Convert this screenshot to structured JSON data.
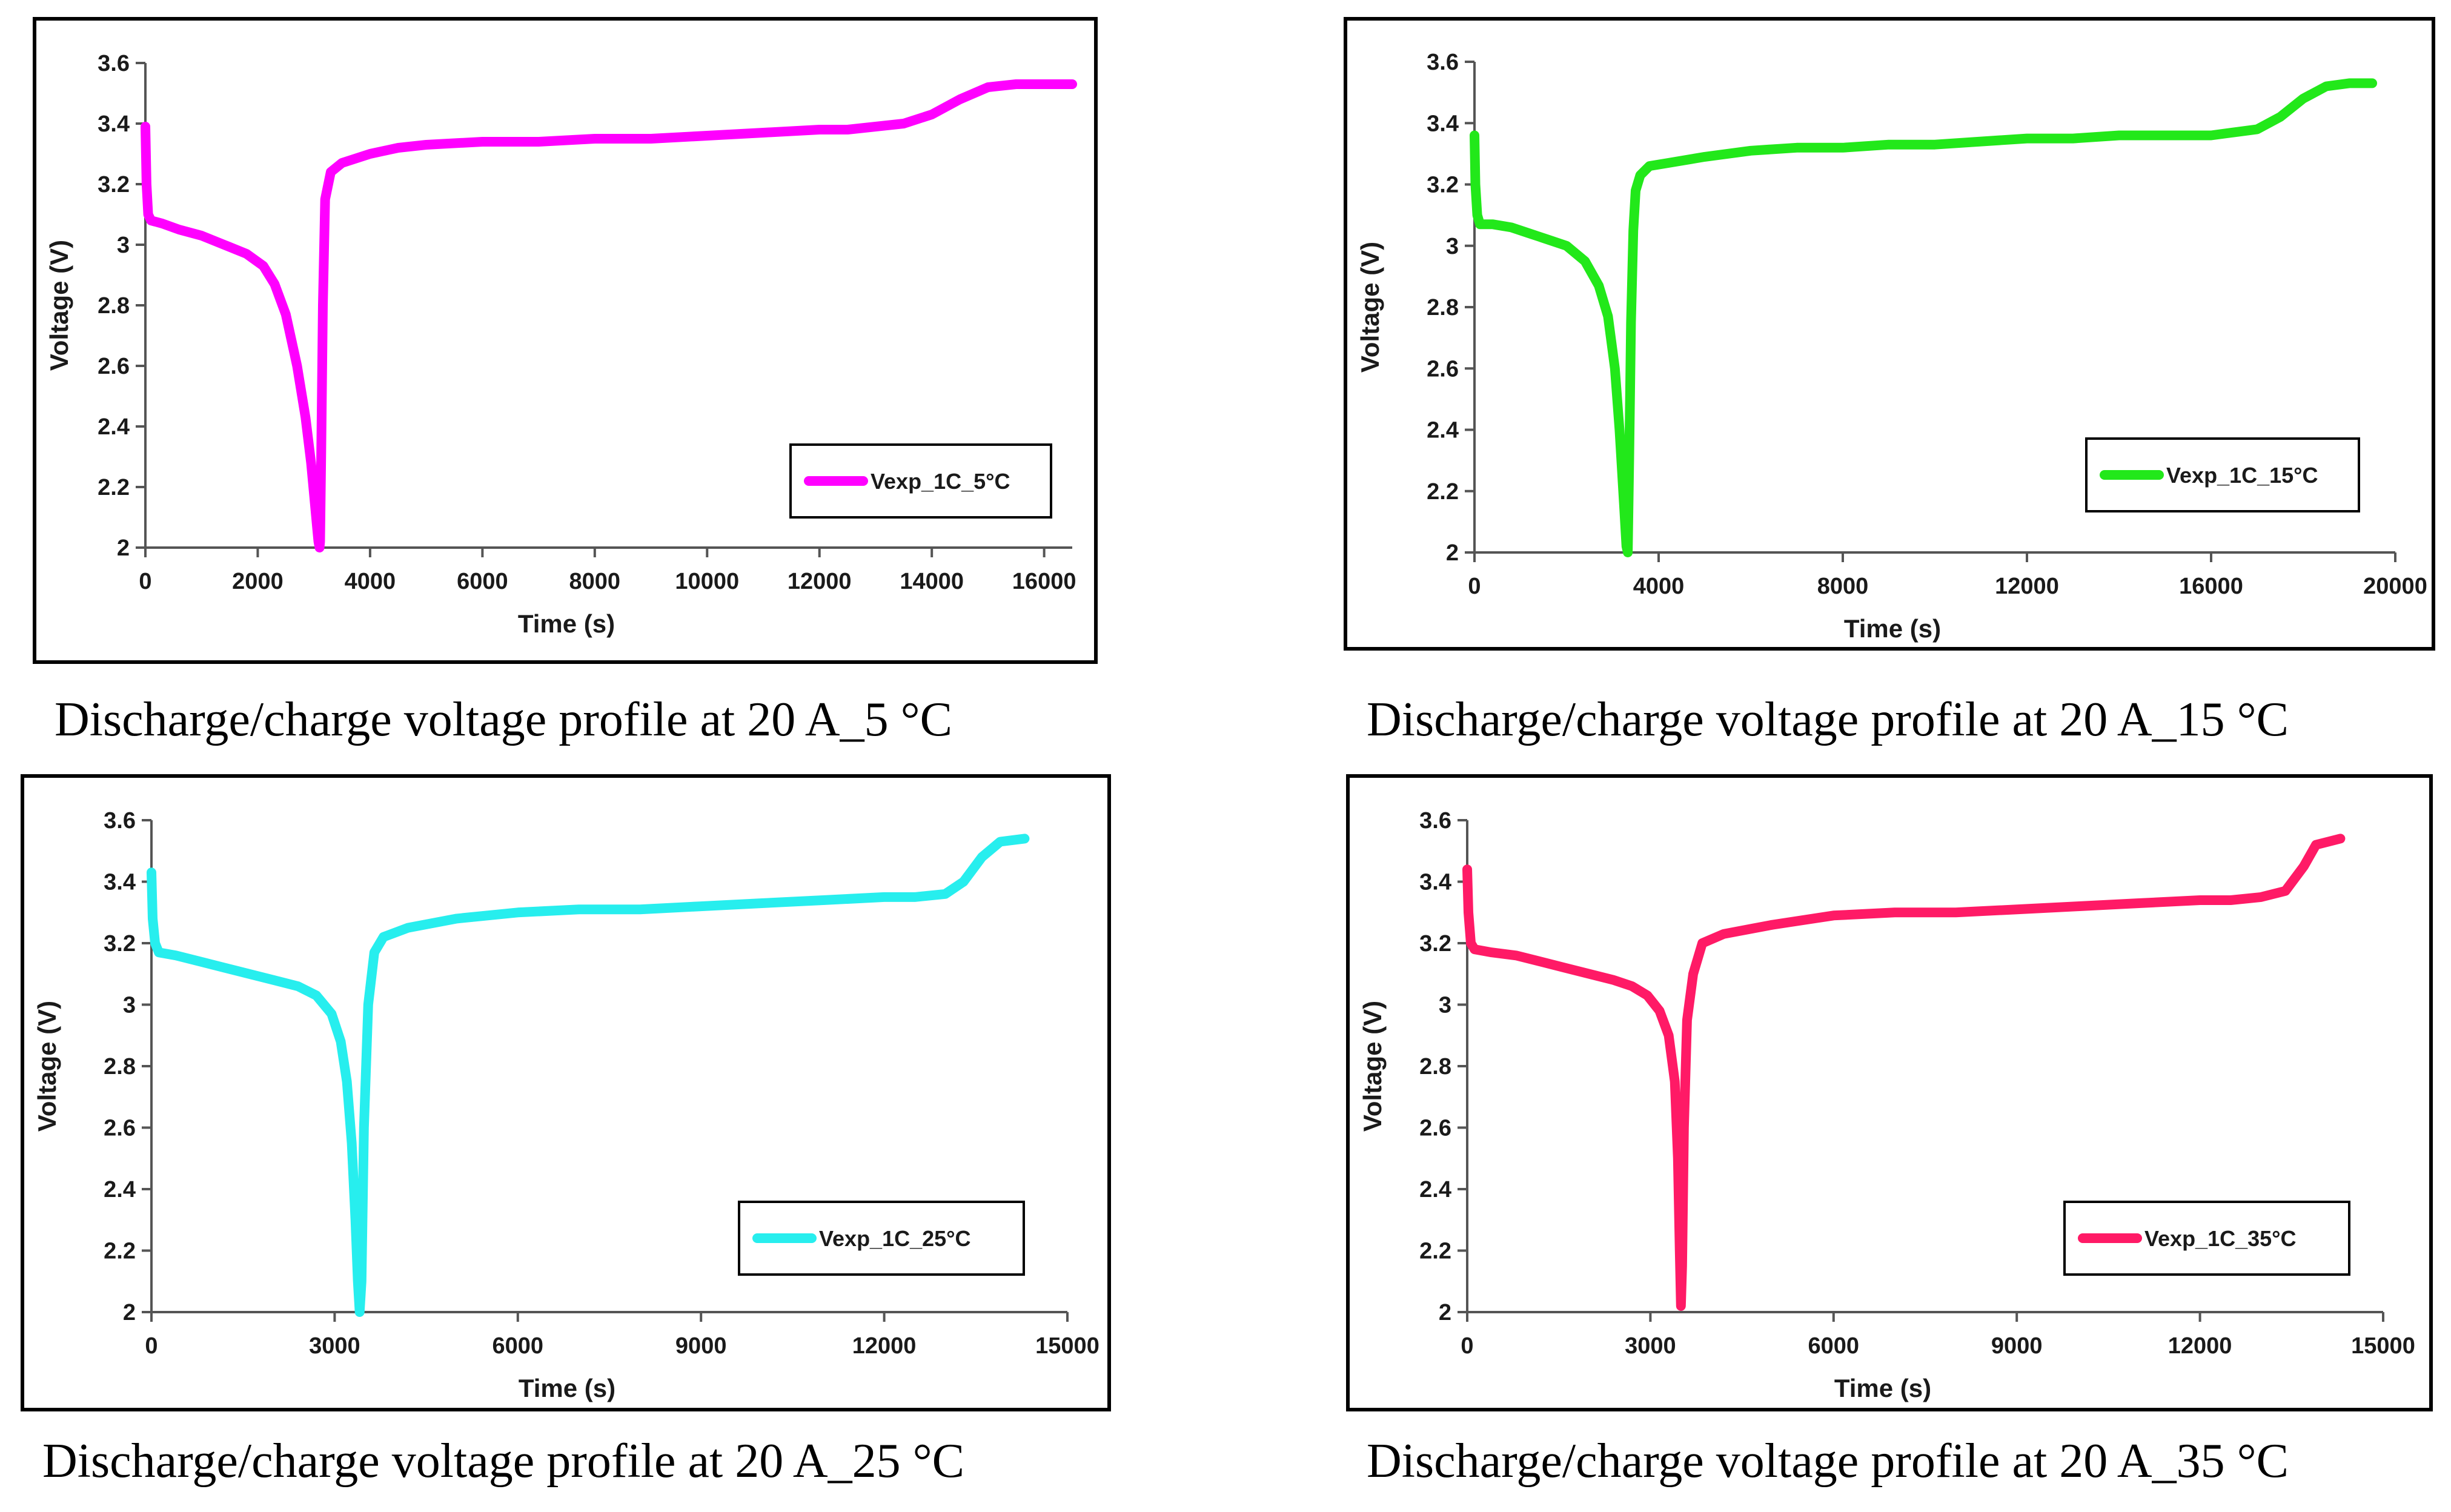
{
  "chart_data": [
    {
      "type": "line",
      "title": "",
      "caption": "Discharge/charge voltage profile at 20 A_5 °C",
      "xlabel": "Time (s)",
      "ylabel": "Voltage (V)",
      "xlim": [
        0,
        16500
      ],
      "ylim": [
        2,
        3.6
      ],
      "xticks": [
        0,
        2000,
        4000,
        6000,
        8000,
        10000,
        12000,
        14000,
        16000
      ],
      "yticks": [
        "2",
        "2.2",
        "2.4",
        "2.6",
        "2.8",
        "3",
        "3.2",
        "3.4",
        "3.6"
      ],
      "grid": false,
      "legend_position": "lower-right",
      "series": [
        {
          "name": "Vexp_1C_5°C",
          "color": "#ff00ff",
          "x": [
            0,
            20,
            50,
            100,
            300,
            600,
            1000,
            1400,
            1800,
            2100,
            2300,
            2500,
            2700,
            2850,
            2950,
            3020,
            3060,
            3080,
            3100,
            3110,
            3130,
            3160,
            3200,
            3300,
            3500,
            4000,
            4500,
            5000,
            6000,
            7000,
            8000,
            9000,
            10000,
            11000,
            12000,
            12500,
            13000,
            13500,
            14000,
            14500,
            15000,
            15500,
            16000,
            16500
          ],
          "y": [
            3.39,
            3.2,
            3.1,
            3.08,
            3.07,
            3.05,
            3.03,
            3.0,
            2.97,
            2.93,
            2.87,
            2.77,
            2.6,
            2.43,
            2.28,
            2.14,
            2.06,
            2.02,
            2.0,
            2.02,
            2.3,
            2.8,
            3.15,
            3.24,
            3.27,
            3.3,
            3.32,
            3.33,
            3.34,
            3.34,
            3.35,
            3.35,
            3.36,
            3.37,
            3.38,
            3.38,
            3.39,
            3.4,
            3.43,
            3.48,
            3.52,
            3.53,
            3.53,
            3.53
          ]
        }
      ]
    },
    {
      "type": "line",
      "title": "",
      "caption": "Discharge/charge voltage profile at 20 A_15 °C",
      "xlabel": "Time (s)",
      "ylabel": "Voltage (V)",
      "xlim": [
        0,
        20000
      ],
      "ylim": [
        2,
        3.6
      ],
      "xticks": [
        0,
        4000,
        8000,
        12000,
        16000,
        20000
      ],
      "yticks": [
        "2",
        "2.2",
        "2.4",
        "2.6",
        "2.8",
        "3",
        "3.2",
        "3.4",
        "3.6"
      ],
      "grid": false,
      "legend_position": "lower-right",
      "series": [
        {
          "name": "Vexp_1C_15°C",
          "color": "#22e81a",
          "x": [
            0,
            20,
            60,
            120,
            400,
            800,
            1200,
            1600,
            2000,
            2400,
            2700,
            2900,
            3050,
            3150,
            3250,
            3300,
            3330,
            3360,
            3400,
            3450,
            3500,
            3600,
            3800,
            4200,
            5000,
            6000,
            7000,
            8000,
            9000,
            10000,
            11000,
            12000,
            13000,
            14000,
            15000,
            16000,
            16500,
            17000,
            17500,
            18000,
            18500,
            19000,
            19500
          ],
          "y": [
            3.36,
            3.2,
            3.1,
            3.07,
            3.07,
            3.06,
            3.04,
            3.02,
            3.0,
            2.95,
            2.87,
            2.77,
            2.6,
            2.4,
            2.15,
            2.02,
            2.0,
            2.3,
            2.75,
            3.05,
            3.18,
            3.23,
            3.26,
            3.27,
            3.29,
            3.31,
            3.32,
            3.32,
            3.33,
            3.33,
            3.34,
            3.35,
            3.35,
            3.36,
            3.36,
            3.36,
            3.37,
            3.38,
            3.42,
            3.48,
            3.52,
            3.53,
            3.53
          ]
        }
      ]
    },
    {
      "type": "line",
      "title": "",
      "caption": "Discharge/charge voltage profile at 20 A_25 °C",
      "xlabel": "Time (s)",
      "ylabel": "Voltage (V)",
      "xlim": [
        0,
        15000
      ],
      "ylim": [
        2,
        3.6
      ],
      "xticks": [
        0,
        3000,
        6000,
        9000,
        12000,
        15000
      ],
      "yticks": [
        "2",
        "2.2",
        "2.4",
        "2.6",
        "2.8",
        "3",
        "3.2",
        "3.4",
        "3.6"
      ],
      "grid": false,
      "legend_position": "lower-right",
      "series": [
        {
          "name": "Vexp_1C_25°C",
          "color": "#27eeee",
          "x": [
            0,
            20,
            60,
            120,
            400,
            800,
            1200,
            1600,
            2000,
            2400,
            2700,
            2950,
            3100,
            3200,
            3280,
            3340,
            3380,
            3410,
            3440,
            3480,
            3550,
            3650,
            3800,
            4200,
            5000,
            6000,
            7000,
            8000,
            9000,
            10000,
            11000,
            12000,
            12500,
            13000,
            13300,
            13600,
            13900,
            14300
          ],
          "y": [
            3.43,
            3.28,
            3.2,
            3.17,
            3.16,
            3.14,
            3.12,
            3.1,
            3.08,
            3.06,
            3.03,
            2.97,
            2.88,
            2.75,
            2.55,
            2.3,
            2.1,
            2.0,
            2.1,
            2.6,
            3.0,
            3.17,
            3.22,
            3.25,
            3.28,
            3.3,
            3.31,
            3.31,
            3.32,
            3.33,
            3.34,
            3.35,
            3.35,
            3.36,
            3.4,
            3.48,
            3.53,
            3.54
          ]
        }
      ]
    },
    {
      "type": "line",
      "title": "",
      "caption": "Discharge/charge voltage profile at 20 A_35 °C",
      "xlabel": "Time (s)",
      "ylabel": "Voltage (V)",
      "xlim": [
        0,
        15000
      ],
      "ylim": [
        2,
        3.6
      ],
      "xticks": [
        0,
        3000,
        6000,
        9000,
        12000,
        15000
      ],
      "yticks": [
        "2",
        "2.2",
        "2.4",
        "2.6",
        "2.8",
        "3",
        "3.2",
        "3.4",
        "3.6"
      ],
      "grid": false,
      "legend_position": "lower-right",
      "series": [
        {
          "name": "Vexp_1C_35°C",
          "color": "#ff1a66",
          "x": [
            0,
            20,
            60,
            120,
            400,
            800,
            1200,
            1600,
            2000,
            2400,
            2700,
            2950,
            3150,
            3300,
            3400,
            3450,
            3480,
            3500,
            3520,
            3550,
            3600,
            3700,
            3850,
            4200,
            5000,
            6000,
            7000,
            8000,
            9000,
            10000,
            11000,
            12000,
            12500,
            13000,
            13400,
            13700,
            13900,
            14300
          ],
          "y": [
            3.44,
            3.3,
            3.2,
            3.18,
            3.17,
            3.16,
            3.14,
            3.12,
            3.1,
            3.08,
            3.06,
            3.03,
            2.98,
            2.9,
            2.75,
            2.5,
            2.2,
            2.02,
            2.15,
            2.6,
            2.95,
            3.1,
            3.2,
            3.23,
            3.26,
            3.29,
            3.3,
            3.3,
            3.31,
            3.32,
            3.33,
            3.34,
            3.34,
            3.35,
            3.37,
            3.45,
            3.52,
            3.54
          ]
        }
      ]
    }
  ]
}
